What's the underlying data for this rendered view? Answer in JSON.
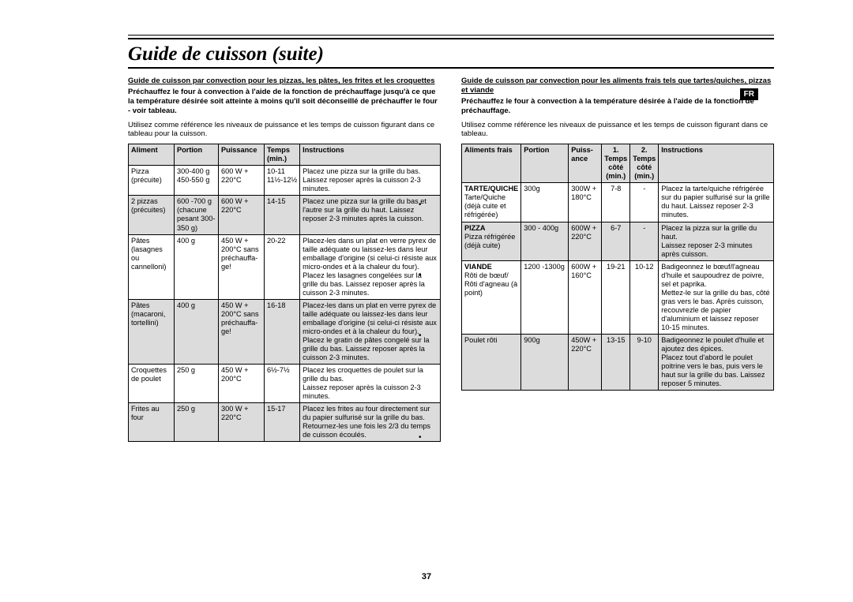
{
  "title": "Guide de cuisson (suite)",
  "lang_tab": "FR",
  "page_number": "37",
  "left": {
    "heading": "Guide de cuisson par convection pour les pizzas, les pâtes, les frites et les croquettes",
    "preheat_bold": "Préchauffez le four à convection à l'aide de la fonction de préchauffage jusqu'à ce que la température désirée soit atteinte à moins qu'il soit déconseillé de préchauffer le four - voir tableau.",
    "intro": "Utilisez comme référence les niveaux de puissance et les temps de cuisson figurant dans ce tableau pour la cuisson.",
    "headers": {
      "aliment": "Aliment",
      "portion": "Portion",
      "puissance": "Puissance",
      "temps": "Temps (min.)",
      "instructions": "Instructions"
    },
    "rows": [
      {
        "shade": false,
        "aliment": "Pizza (précuite)",
        "portion": "300-400 g\n450-550 g",
        "puissance": "600 W + 220°C",
        "temps": "10-11\n11½-12½",
        "instr": "Placez une pizza sur la grille du bas.\nLaissez reposer après la cuisson 2-3 minutes."
      },
      {
        "shade": true,
        "aliment": "2 pizzas (précuites)",
        "portion": "600 -700 g (chacune pesant 300-350 g)",
        "puissance": "600 W + 220°C",
        "temps": "14-15",
        "instr": "Placez une pizza sur la grille du bas et l'autre sur la grille du haut. Laissez reposer 2-3 minutes après la cuisson."
      },
      {
        "shade": false,
        "aliment": "Pâtes (lasagnes ou cannelloni)",
        "portion": "400 g",
        "puissance": "450 W + 200°C sans préchauffa-ge!",
        "temps": "20-22",
        "instr": "Placez-les dans un plat en verre pyrex de taille adéquate ou laissez-les dans leur emballage d'origine (si celui-ci résiste aux micro-ondes et à la chaleur du four). Placez les lasagnes congelées sur la grille du bas. Laissez reposer après la cuisson 2-3 minutes."
      },
      {
        "shade": true,
        "aliment": "Pâtes (macaroni, tortellini)",
        "portion": "400 g",
        "puissance": "450 W + 200°C sans préchauffa-ge!",
        "temps": "16-18",
        "instr": "Placez-les dans un plat en verre pyrex de taille adéquate ou laissez-les dans leur emballage d'origine (si celui-ci résiste aux micro-ondes et à la chaleur du four).\nPlacez le gratin de pâtes congelé sur la grille du bas. Laissez reposer après la cuisson 2-3 minutes."
      },
      {
        "shade": false,
        "aliment": "Croquettes de poulet",
        "portion": "250 g",
        "puissance": "450 W + 200°C",
        "temps": "6½-7½",
        "instr": "Placez les croquettes de poulet sur la grille du bas.\nLaissez reposer après la cuisson 2-3 minutes."
      },
      {
        "shade": true,
        "aliment": "Frites au four",
        "portion": "250 g",
        "puissance": "300 W + 220°C",
        "temps": "15-17",
        "instr": "Placez les frites au four directement sur du papier sulfurisé sur la grille du bas. Retournez-les une fois les 2/3 du temps de cuisson écoulés."
      }
    ]
  },
  "right": {
    "heading": "Guide de cuisson par convection pour les aliments frais tels que tartes/quiches, pizzas et viande",
    "preheat_bold": "Préchauffez le four à convection à la température désirée à l'aide de la fonction de préchauffage.",
    "intro": "Utilisez comme référence les niveaux de puissance et les temps de cuisson figurant dans ce tableau.",
    "headers": {
      "aliment": "Aliments frais",
      "portion": "Portion",
      "puissance": "Puiss-ance",
      "t1": "1. Temps côté (min.)",
      "t2": "2. Temps côté (min.)",
      "instructions": "Instructions"
    },
    "sections": {
      "tarte": "TARTE/QUICHE",
      "pizza": "PIZZA",
      "viande": "VIANDE"
    },
    "rows": {
      "tarte": {
        "aliment": "Tarte/Quiche (déjà cuite et réfrigérée)",
        "portion": "300g",
        "puissance": "300W + 180°C",
        "t1": "7-8",
        "t2": "-",
        "instr": "Placez la tarte/quiche réfrigérée sur du papier sulfurisé sur la grille du haut. Laissez reposer 2-3 minutes."
      },
      "pizza": {
        "aliment": "Pizza réfrigérée (déjà cuite)",
        "portion": "300 - 400g",
        "puissance": "600W + 220°C",
        "t1": "6-7",
        "t2": "-",
        "instr": "Placez la pizza sur la grille du haut.\nLaissez reposer 2-3 minutes après cuisson."
      },
      "viande1": {
        "aliment": "Rôti de bœuf/ Rôti d'agneau (à point)",
        "portion": "1200 -1300g",
        "puissance": "600W + 160°C",
        "t1": "19-21",
        "t2": "10-12",
        "instr": "Badigeonnez le bœuf/l'agneau d'huile et saupoudrez de poivre, sel et paprika.\nMettez-le sur la grille du bas, côté gras vers le bas. Après cuisson, recouvrezle de papier d'aluminium et laissez reposer 10-15 minutes."
      },
      "viande2": {
        "aliment": "Poulet rôti",
        "portion": "900g",
        "puissance": "450W + 220°C",
        "t1": "13-15",
        "t2": "9-10",
        "instr": "Badigeonnez le poulet d'huile et ajoutez des épices.\nPlacez tout d'abord le poulet poitrine vers le bas, puis vers le haut sur la grille du bas. Laissez reposer 5 minutes."
      }
    }
  }
}
